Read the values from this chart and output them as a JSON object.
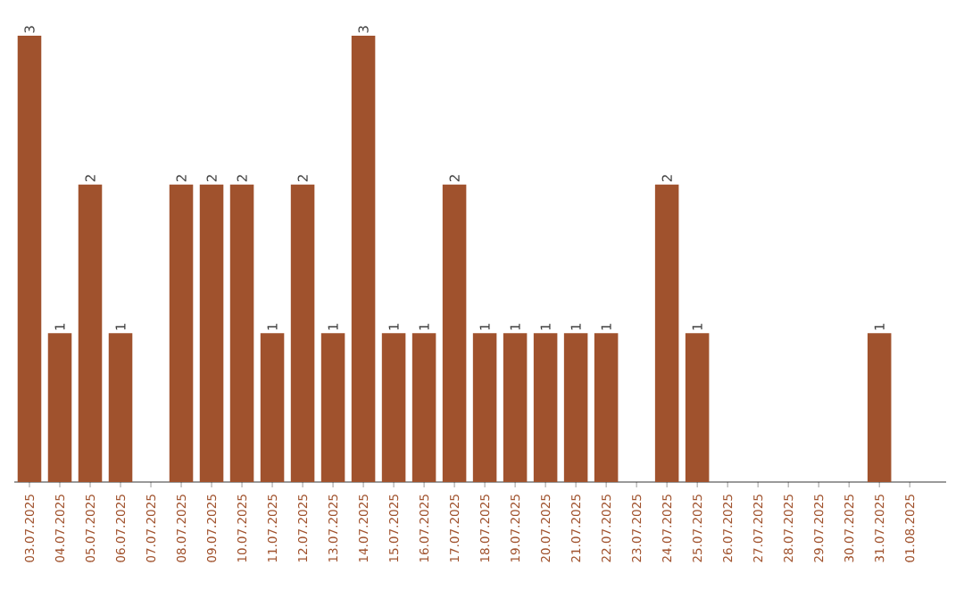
{
  "chart_data": {
    "type": "bar",
    "categories": [
      "03.07.2025",
      "04.07.2025",
      "05.07.2025",
      "06.07.2025",
      "07.07.2025",
      "08.07.2025",
      "09.07.2025",
      "10.07.2025",
      "11.07.2025",
      "12.07.2025",
      "13.07.2025",
      "14.07.2025",
      "15.07.2025",
      "16.07.2025",
      "17.07.2025",
      "18.07.2025",
      "19.07.2025",
      "20.07.2025",
      "21.07.2025",
      "22.07.2025",
      "23.07.2025",
      "24.07.2025",
      "25.07.2025",
      "26.07.2025",
      "27.07.2025",
      "28.07.2025",
      "29.07.2025",
      "30.07.2025",
      "31.07.2025",
      "01.08.2025"
    ],
    "values": [
      3,
      1,
      2,
      1,
      0,
      2,
      2,
      2,
      1,
      2,
      1,
      3,
      1,
      1,
      2,
      1,
      1,
      1,
      1,
      1,
      0,
      2,
      1,
      0,
      0,
      0,
      0,
      0,
      1,
      0
    ],
    "value_labels": [
      "3",
      "1",
      "2",
      "1",
      null,
      "2",
      "2",
      "2",
      "1",
      "2",
      "1",
      "3",
      "1",
      "1",
      "2",
      "1",
      "1",
      "1",
      "1",
      "1",
      null,
      "2",
      "1",
      null,
      null,
      null,
      null,
      null,
      "1",
      null
    ],
    "color": "#a0522d",
    "tick_labels": "x",
    "grid": false
  }
}
